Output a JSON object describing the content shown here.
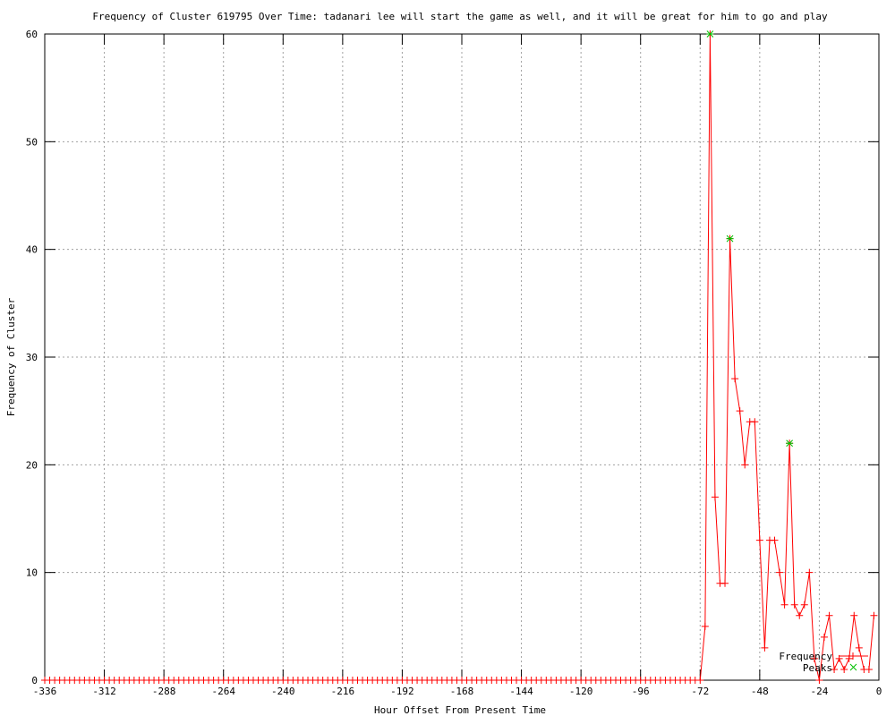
{
  "chart_data": {
    "type": "line",
    "title": "Frequency of Cluster 619795 Over Time: tadanari lee will start the game as well, and it will be great for him to go and play",
    "xlabel": "Hour Offset From Present Time",
    "ylabel": "Frequency of Cluster",
    "xlim": [
      -336,
      0
    ],
    "ylim": [
      0,
      60
    ],
    "xticks": [
      -336,
      -312,
      -288,
      -264,
      -240,
      -216,
      -192,
      -168,
      -144,
      -120,
      -96,
      -72,
      -48,
      -24,
      0
    ],
    "yticks": [
      0,
      10,
      20,
      30,
      40,
      50,
      60
    ],
    "grid": true,
    "legend": "bottom-right",
    "series": [
      {
        "name": "Frequency",
        "color": "#ff0000",
        "marker": "plus",
        "zero_range": [
          -336,
          -74
        ],
        "x": [
          -72,
          -70,
          -68,
          -66,
          -64,
          -62,
          -60,
          -58,
          -56,
          -54,
          -52,
          -50,
          -48,
          -46,
          -44,
          -42,
          -40,
          -38,
          -36,
          -34,
          -32,
          -30,
          -28,
          -26,
          -24,
          -22,
          -20,
          -18,
          -16,
          -14,
          -12,
          -10,
          -8,
          -6,
          -4,
          -2
        ],
        "y": [
          0,
          5,
          60,
          17,
          9,
          9,
          41,
          28,
          25,
          20,
          24,
          24,
          13,
          3,
          13,
          13,
          10,
          7,
          22,
          7,
          6,
          7,
          10,
          2,
          0,
          4,
          6,
          1,
          2,
          1,
          2,
          6,
          3,
          1,
          1,
          6
        ]
      },
      {
        "name": "Peaks",
        "color": "#00c000",
        "marker": "x",
        "x": [
          -68,
          -60,
          -36
        ],
        "y": [
          60,
          41,
          22
        ]
      }
    ]
  }
}
